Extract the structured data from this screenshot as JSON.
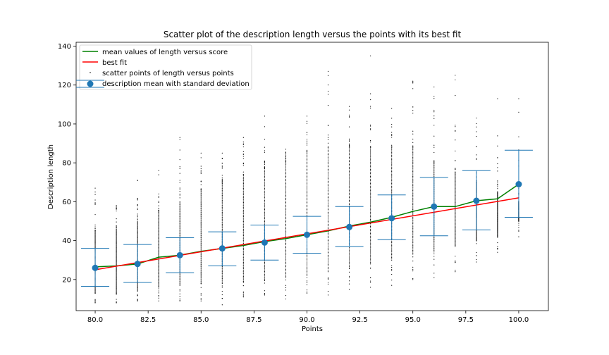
{
  "chart_data": {
    "type": "scatter",
    "title": "Scatter plot of the description length versus the points with its best fit",
    "xlabel": "Points",
    "ylabel": "Description length",
    "xlim": [
      79.1,
      101.4
    ],
    "ylim": [
      4,
      142
    ],
    "x_ticks": [
      80.0,
      82.5,
      85.0,
      87.5,
      90.0,
      92.5,
      95.0,
      97.5,
      100.0
    ],
    "x_tick_labels": [
      "80.0",
      "82.5",
      "85.0",
      "87.5",
      "90.0",
      "92.5",
      "95.0",
      "97.5",
      "100.0"
    ],
    "y_ticks": [
      20,
      40,
      60,
      80,
      100,
      120,
      140
    ],
    "y_tick_labels": [
      "20",
      "40",
      "60",
      "80",
      "100",
      "120",
      "140"
    ],
    "grid": false,
    "legend_position": "upper-left",
    "legend": [
      "mean values of length versus score",
      "best fit",
      "scatter points of length versus points",
      "description mean with standard deviation"
    ],
    "colors": {
      "mean_line": "#008000",
      "best_fit": "#ff0000",
      "scatter": "#000000",
      "errorbar": "#1f77b4"
    },
    "mean_line": {
      "x": [
        80,
        81,
        82,
        83,
        84,
        85,
        86,
        87,
        88,
        89,
        90,
        91,
        92,
        93,
        94,
        95,
        96,
        97,
        98,
        99,
        100
      ],
      "y": [
        26.5,
        27,
        28,
        31.5,
        32.5,
        34.5,
        36,
        37.5,
        39.5,
        41,
        43,
        45,
        47.5,
        49.5,
        52,
        55,
        57.5,
        57.5,
        60.5,
        61.5,
        69
      ]
    },
    "best_fit": {
      "x": [
        80,
        100
      ],
      "y": [
        25,
        62
      ]
    },
    "errorbars": {
      "x": [
        80,
        82,
        84,
        86,
        88,
        90,
        92,
        94,
        96,
        98,
        100
      ],
      "mean": [
        26,
        28,
        32.5,
        36,
        39,
        43,
        47,
        51.5,
        57.5,
        60.5,
        69
      ],
      "lower": [
        16.5,
        18.5,
        23.5,
        27,
        30,
        33.5,
        37,
        40.5,
        42.5,
        45.5,
        52
      ],
      "upper": [
        36,
        38,
        41.5,
        44.5,
        48,
        52.5,
        57.5,
        63.5,
        72.5,
        76,
        86.5
      ]
    },
    "scatter_columns": {
      "x": [
        80,
        81,
        82,
        83,
        84,
        85,
        86,
        87,
        88,
        89,
        90,
        91,
        92,
        93,
        94,
        95,
        96,
        97,
        98,
        99,
        100
      ],
      "min": [
        8,
        8,
        9,
        9,
        9,
        9,
        7,
        11,
        12,
        10,
        13,
        12,
        15,
        16,
        17,
        20,
        21,
        24,
        29,
        34,
        42
      ],
      "dense_low": [
        13,
        13,
        14,
        16,
        17,
        18,
        18,
        19,
        20,
        21,
        22,
        24,
        26,
        28,
        30,
        33,
        35,
        37,
        40,
        42,
        50
      ],
      "dense_high": [
        45,
        46,
        50,
        55,
        60,
        66,
        70,
        74,
        77,
        80,
        84,
        88,
        88,
        88,
        88,
        88,
        80,
        75,
        70,
        65,
        60
      ],
      "max": [
        67,
        58,
        71,
        76,
        93,
        85,
        85,
        93,
        104,
        87,
        104,
        127,
        109,
        135,
        108,
        122,
        119,
        125,
        103,
        113,
        113
      ]
    }
  }
}
